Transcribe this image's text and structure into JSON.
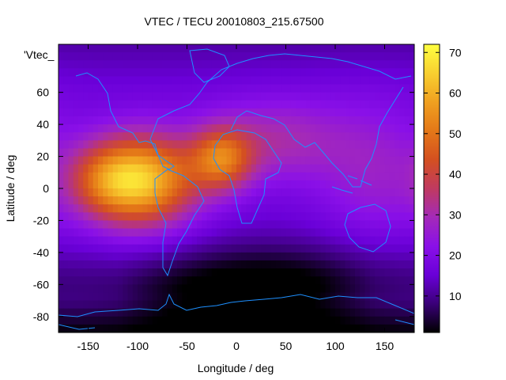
{
  "chart_data": {
    "type": "heatmap",
    "title": "VTEC / TECU 20010803_215.67500",
    "xlabel": "Longitude / deg",
    "ylabel": "Latitude / deg",
    "xlim": [
      -180,
      180
    ],
    "ylim": [
      -90,
      90
    ],
    "x_ticks": [
      -150,
      -100,
      -50,
      0,
      50,
      100,
      150
    ],
    "y_ticks": [
      60,
      40,
      20,
      0,
      -20,
      -40,
      -60,
      -80
    ],
    "y_tick_top_label": "'Vtec_",
    "colorbar": {
      "range": [
        1,
        72
      ],
      "ticks": [
        10,
        20,
        30,
        40,
        50,
        60,
        70
      ],
      "palette": [
        "#000000",
        "#3a0078",
        "#6a00d8",
        "#8a10e8",
        "#a42ab8",
        "#c03a60",
        "#d45020",
        "#e47818",
        "#f0a020",
        "#f8d030",
        "#ffff40"
      ]
    },
    "field_description": "Global VTEC map: peak ~70 TECU near (-95, 5) and ~55 TECU near (-15, 18); low values (<5) over southern high latitudes and Antarctica.",
    "peaks": [
      {
        "lon": -95,
        "lat": 5,
        "value": 68
      },
      {
        "lon": -15,
        "lat": 18,
        "value": 55
      },
      {
        "lon": -135,
        "lat": 5,
        "value": 45
      }
    ]
  }
}
